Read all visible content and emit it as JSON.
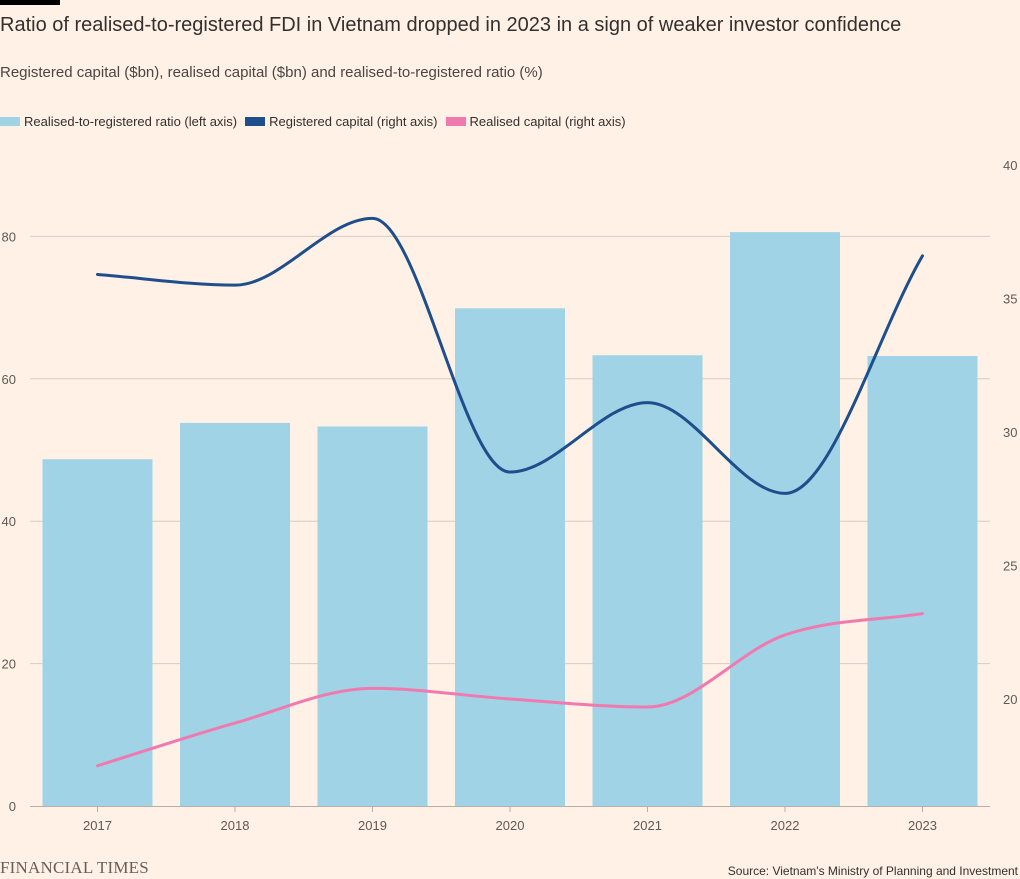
{
  "header": {
    "title": "Ratio of realised-to-registered FDI in Vietnam dropped in 2023 in a sign of weaker investor confidence",
    "subtitle": "Registered capital ($bn), realised capital ($bn) and realised-to-registered ratio (%)"
  },
  "legend": [
    {
      "label": "Realised-to-registered ratio (left axis)",
      "color": "#9FD3E5"
    },
    {
      "label": "Registered capital (right axis)",
      "color": "#1F4E8C"
    },
    {
      "label": "Realised capital (right axis)",
      "color": "#F07AB0"
    }
  ],
  "footer": {
    "brand": "FINANCIAL TIMES",
    "source": "Source: Vietnam's Ministry of Planning and Investment"
  },
  "chart_data": {
    "type": "bar",
    "categories": [
      "2017",
      "2018",
      "2019",
      "2020",
      "2021",
      "2022",
      "2023"
    ],
    "series": [
      {
        "name": "Realised-to-registered ratio (left axis)",
        "type": "bar",
        "axis": "left",
        "color": "#9FD3E5",
        "values": [
          48.7,
          53.8,
          53.3,
          69.9,
          63.3,
          80.6,
          63.2
        ]
      },
      {
        "name": "Registered capital (right axis)",
        "type": "line",
        "axis": "right",
        "color": "#1F4E8C",
        "values": [
          35.9,
          35.5,
          38.0,
          28.5,
          31.1,
          27.7,
          36.6
        ]
      },
      {
        "name": "Realised capital (right axis)",
        "type": "line",
        "axis": "right",
        "color": "#F07AB0",
        "values": [
          17.5,
          19.1,
          20.4,
          20.0,
          19.7,
          22.4,
          23.2
        ]
      }
    ],
    "left_axis": {
      "ylim": [
        0,
        90
      ],
      "ticks": [
        0,
        20,
        40,
        60,
        80
      ]
    },
    "right_axis": {
      "ylim": [
        15,
        40
      ],
      "ticks": [
        20,
        25,
        30,
        35,
        40
      ]
    },
    "grid": true,
    "legend_position": "top-left"
  }
}
